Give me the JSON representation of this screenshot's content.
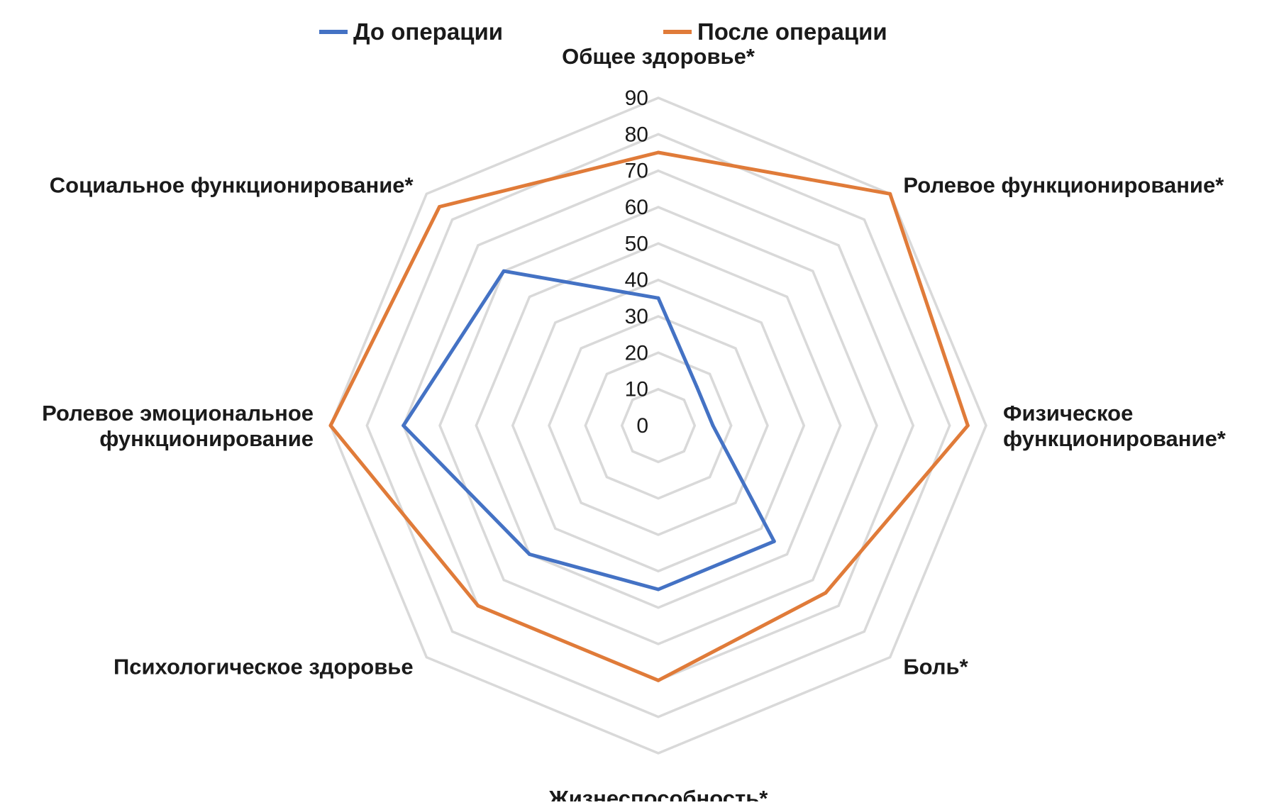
{
  "chart_data": {
    "type": "radar",
    "title": "",
    "legend": {
      "placement": "top",
      "entries": [
        {
          "name": "До операции",
          "color": "#4472c4"
        },
        {
          "name": "После операции",
          "color": "#e07b39"
        }
      ]
    },
    "scale": {
      "min": 0,
      "max": 90,
      "step": 10
    },
    "ticks": [
      "0",
      "10",
      "20",
      "30",
      "40",
      "50",
      "60",
      "70",
      "80",
      "90"
    ],
    "axes": [
      {
        "lines": [
          "Общее здоровье*"
        ]
      },
      {
        "lines": [
          "Ролевое функционирование*"
        ]
      },
      {
        "lines": [
          "Физическое",
          "функционирование*"
        ]
      },
      {
        "lines": [
          "Боль*"
        ]
      },
      {
        "lines": [
          "Жизнеспособность*"
        ]
      },
      {
        "lines": [
          "Психологическое здоровье"
        ]
      },
      {
        "lines": [
          "Ролевое эмоциональное",
          "функционирование"
        ]
      },
      {
        "lines": [
          "Социальное функционирование*"
        ]
      }
    ],
    "series": [
      {
        "name": "До операции",
        "color": "#4472c4",
        "values": [
          35,
          15,
          15,
          45,
          45,
          50,
          70,
          60
        ]
      },
      {
        "name": "После операции",
        "color": "#e07b39",
        "values": [
          75,
          90,
          85,
          65,
          70,
          70,
          90,
          85
        ]
      }
    ],
    "grid_color": "#d9d9d9",
    "grid": true
  }
}
